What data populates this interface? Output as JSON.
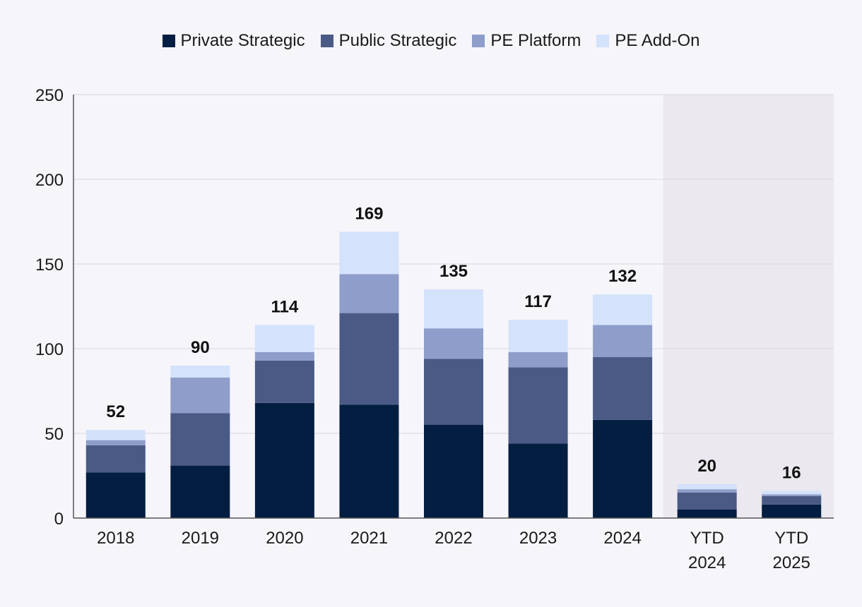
{
  "chart_data": {
    "type": "bar",
    "stacked": true,
    "categories": [
      "2018",
      "2019",
      "2020",
      "2021",
      "2022",
      "2023",
      "2024",
      "YTD 2024",
      "YTD 2025"
    ],
    "series": [
      {
        "name": "Private Strategic",
        "color": "#041e42",
        "values": [
          27,
          31,
          68,
          67,
          55,
          44,
          58,
          5,
          8
        ]
      },
      {
        "name": "Public Strategic",
        "color": "#4a5a85",
        "values": [
          16,
          31,
          25,
          54,
          39,
          45,
          37,
          10,
          5
        ]
      },
      {
        "name": "PE Platform",
        "color": "#8e9dca",
        "values": [
          3,
          21,
          5,
          23,
          18,
          9,
          19,
          2,
          1
        ]
      },
      {
        "name": "PE Add-On",
        "color": "#d4e2fb",
        "values": [
          6,
          7,
          16,
          25,
          23,
          19,
          18,
          3,
          2
        ]
      }
    ],
    "totals": [
      "52",
      "90",
      "114",
      "169",
      "135",
      "117",
      "132",
      "20",
      "16"
    ],
    "ylim": [
      0,
      250
    ],
    "yticks": [
      "0",
      "50",
      "100",
      "150",
      "200",
      "250"
    ],
    "gridlines": true,
    "legend": "top-center",
    "highlight": {
      "categories": [
        "YTD 2024",
        "YTD 2025"
      ],
      "color": "#ebe9ef"
    }
  }
}
